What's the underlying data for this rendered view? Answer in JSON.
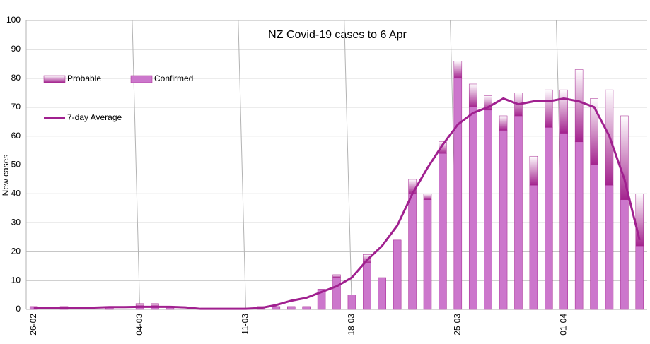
{
  "chart_data": {
    "type": "bar",
    "stacked": true,
    "title": "NZ Covid-19 cases to 6 Apr",
    "y_label": "New cases",
    "categories": [
      "26-02",
      null,
      null,
      null,
      null,
      null,
      null,
      "04-03",
      null,
      null,
      null,
      null,
      null,
      null,
      "11-03",
      null,
      null,
      null,
      null,
      null,
      null,
      "18-03",
      null,
      null,
      null,
      null,
      null,
      null,
      "25-03",
      null,
      null,
      null,
      null,
      null,
      null,
      "01-04",
      null,
      null,
      null,
      null,
      null
    ],
    "series": [
      {
        "name": "Confirmed",
        "color": "#cc77cc",
        "values": [
          1,
          0,
          1,
          0,
          0,
          1,
          0,
          1,
          1,
          1,
          0,
          0,
          0,
          0,
          0,
          1,
          1,
          1,
          1,
          7,
          11,
          5,
          16,
          11,
          24,
          40,
          38,
          54,
          80,
          70,
          69,
          62,
          67,
          43,
          63,
          61,
          58,
          50,
          43,
          38,
          22
        ]
      },
      {
        "name": "Probable",
        "color": "#a3238e",
        "values": [
          0,
          0,
          0,
          0,
          0,
          0,
          0,
          1,
          1,
          0,
          0,
          0,
          0,
          0,
          0,
          0,
          0,
          0,
          0,
          0,
          1,
          0,
          3,
          0,
          0,
          5,
          2,
          4,
          6,
          8,
          5,
          5,
          8,
          10,
          13,
          15,
          25,
          23,
          33,
          29,
          18
        ]
      },
      {
        "name": "7-day Average",
        "type": "line",
        "color": "#a0208f",
        "values": [
          0.5,
          0.4,
          0.5,
          0.5,
          0.6,
          0.8,
          0.8,
          0.9,
          0.9,
          0.9,
          0.7,
          0.2,
          0.2,
          0.2,
          0.2,
          0.5,
          1.5,
          3,
          4,
          6,
          8,
          11,
          17,
          22,
          29,
          40,
          49,
          57,
          64,
          68,
          70,
          73,
          71,
          72,
          72,
          73,
          72,
          70,
          60,
          45,
          24
        ]
      }
    ],
    "ylim": [
      0,
      100
    ],
    "yticks": [
      0,
      10,
      20,
      30,
      40,
      50,
      60,
      70,
      80,
      90,
      100
    ],
    "grid": true
  }
}
